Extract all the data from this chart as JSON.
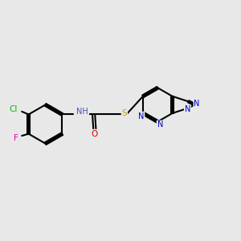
{
  "bg_color": "#e8e8e8",
  "bond_color": "#000000",
  "bond_width": 1.5,
  "atom_colors": {
    "N": "#0000cc",
    "O": "#dd0000",
    "S": "#bbaa00",
    "Cl": "#00bb00",
    "F": "#ee00aa",
    "H": "#4455bb"
  },
  "font_size": 7.0,
  "xlim": [
    0.3,
    10.2
  ],
  "ylim": [
    2.8,
    7.5
  ]
}
